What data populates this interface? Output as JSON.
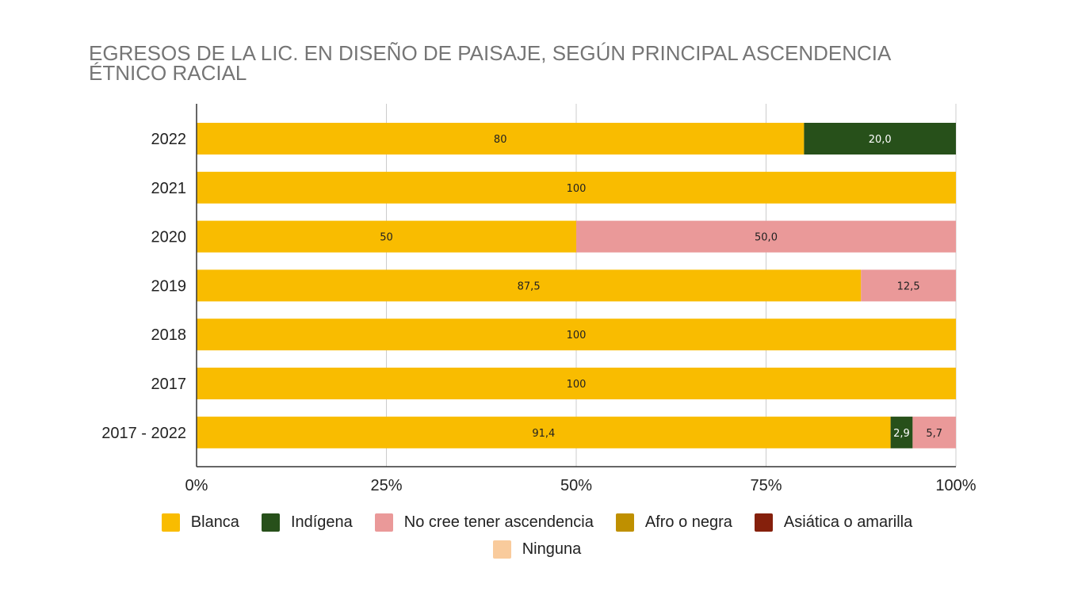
{
  "colors": {
    "Blanca": "#F9BC00",
    "Indígena": "#27501A",
    "No cree tener ascendencia": "#EA9999",
    "Afro o negra": "#BF9000",
    "Asiática o amarilla": "#85200C",
    "Ninguna": "#F9CB9C"
  },
  "chart_data": {
    "type": "bar",
    "orientation": "horizontal",
    "stacked": "percent",
    "title": "EGRESOS DE LA LIC. EN DISEÑO DE PAISAJE, SEGÚN PRINCIPAL ASCENDENCIA ÉTNICO RACIAL",
    "title_lines": [
      "EGRESOS DE LA LIC. EN DISEÑO DE PAISAJE, SEGÚN PRINCIPAL ASCENDENCIA",
      "ÉTNICO RACIAL"
    ],
    "categories": [
      "2022",
      "2021",
      "2020",
      "2019",
      "2018",
      "2017",
      "2017 - 2022"
    ],
    "xlim": [
      0,
      100
    ],
    "x_ticks": [
      "0%",
      "25%",
      "50%",
      "75%",
      "100%"
    ],
    "grid": true,
    "legend_position": "bottom",
    "series": [
      {
        "name": "Blanca",
        "values": [
          80,
          100,
          50,
          87.5,
          100,
          100,
          91.4
        ],
        "labels": [
          "80",
          "100",
          "50",
          "87,5",
          "100",
          "100",
          "91,4"
        ]
      },
      {
        "name": "Indígena",
        "values": [
          20.0,
          0,
          0,
          0,
          0,
          0,
          2.9
        ],
        "labels": [
          "20,0",
          "",
          "",
          "",
          "",
          "",
          "2,9"
        ]
      },
      {
        "name": "No cree tener ascendencia",
        "values": [
          0,
          0,
          50.0,
          12.5,
          0,
          0,
          5.7
        ],
        "labels": [
          "",
          "",
          "50,0",
          "12,5",
          "",
          "",
          "5,7"
        ]
      },
      {
        "name": "Afro o negra",
        "values": [
          0,
          0,
          0,
          0,
          0,
          0,
          0
        ],
        "labels": [
          "",
          "",
          "",
          "",
          "",
          "",
          ""
        ]
      },
      {
        "name": "Asiática o amarilla",
        "values": [
          0,
          0,
          0,
          0,
          0,
          0,
          0
        ],
        "labels": [
          "",
          "",
          "",
          "",
          "",
          "",
          ""
        ]
      },
      {
        "name": "Ninguna",
        "values": [
          0,
          0,
          0,
          0,
          0,
          0,
          0
        ],
        "labels": [
          "",
          "",
          "",
          "",
          "",
          "",
          ""
        ]
      }
    ]
  }
}
